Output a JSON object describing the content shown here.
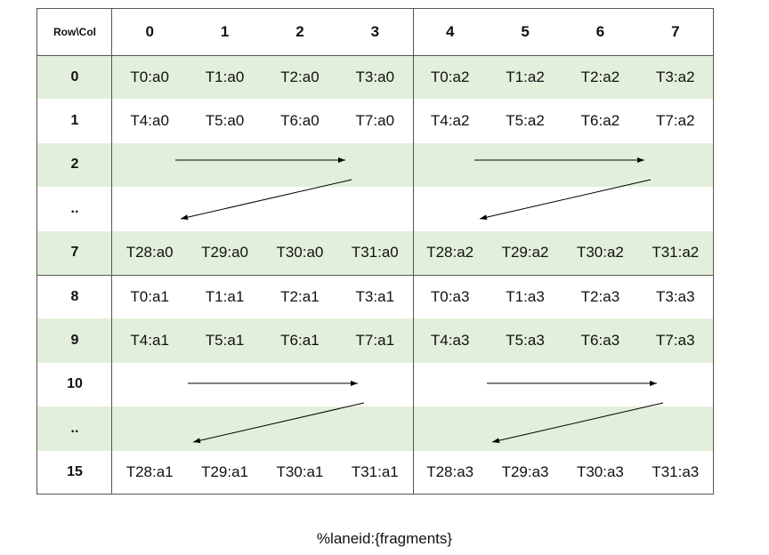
{
  "header": {
    "corner": "Row\\Col",
    "cols": [
      "0",
      "1",
      "2",
      "3",
      "4",
      "5",
      "6",
      "7"
    ]
  },
  "rows": [
    {
      "label": "0",
      "cells": [
        "T0:a0",
        "T1:a0",
        "T2:a0",
        "T3:a0",
        "T0:a2",
        "T1:a2",
        "T2:a2",
        "T3:a2"
      ],
      "shaded": true
    },
    {
      "label": "1",
      "cells": [
        "T4:a0",
        "T5:a0",
        "T6:a0",
        "T7:a0",
        "T4:a2",
        "T5:a2",
        "T6:a2",
        "T7:a2"
      ],
      "shaded": false
    },
    {
      "label": "2",
      "cells": [],
      "shaded": true
    },
    {
      "label": "..",
      "cells": [],
      "shaded": false
    },
    {
      "label": "7",
      "cells": [
        "T28:a0",
        "T29:a0",
        "T30:a0",
        "T31:a0",
        "T28:a2",
        "T29:a2",
        "T30:a2",
        "T31:a2"
      ],
      "shaded": true
    },
    {
      "label": "8",
      "cells": [
        "T0:a1",
        "T1:a1",
        "T2:a1",
        "T3:a1",
        "T0:a3",
        "T1:a3",
        "T2:a3",
        "T3:a3"
      ],
      "shaded": false
    },
    {
      "label": "9",
      "cells": [
        "T4:a1",
        "T5:a1",
        "T6:a1",
        "T7:a1",
        "T4:a3",
        "T5:a3",
        "T6:a3",
        "T7:a3"
      ],
      "shaded": true
    },
    {
      "label": "10",
      "cells": [],
      "shaded": false
    },
    {
      "label": "..",
      "cells": [],
      "shaded": true
    },
    {
      "label": "15",
      "cells": [
        "T28:a1",
        "T29:a1",
        "T30:a1",
        "T31:a1",
        "T28:a3",
        "T29:a3",
        "T30:a3",
        "T31:a3"
      ],
      "shaded": false
    }
  ],
  "colors": {
    "shade": "#e2efda",
    "border": "#555555"
  },
  "caption": "%laneid:{fragments}"
}
